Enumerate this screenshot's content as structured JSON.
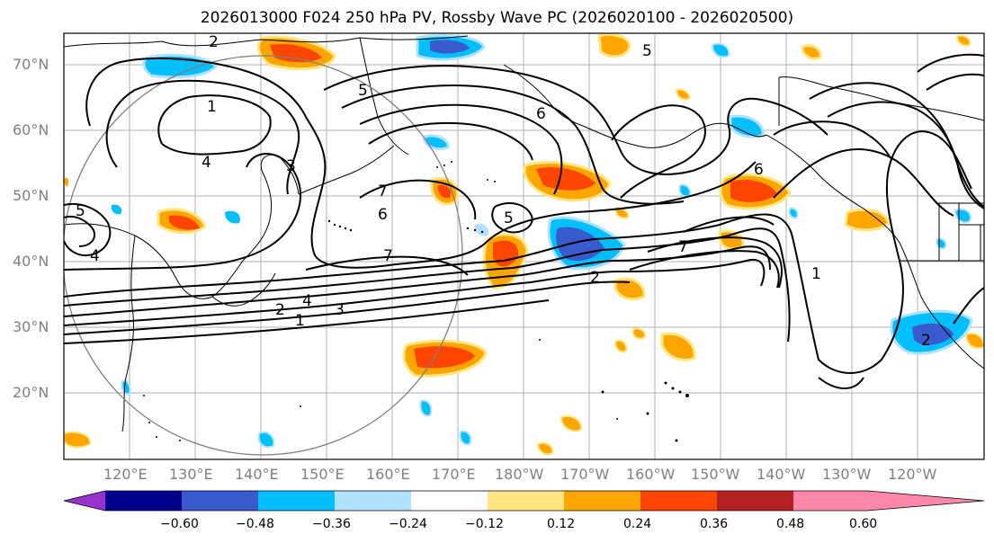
{
  "title": "2026013000 F024 250 hPa PV, Rossby Wave PC (2026020100 - 2026020500)",
  "lat_labels": [
    "70°N",
    "60°N",
    "50°N",
    "40°N",
    "30°N",
    "20°N"
  ],
  "lon_labels": [
    "120°E",
    "130°E",
    "140°E",
    "150°E",
    "160°E",
    "170°E",
    "180°W",
    "170°W",
    "160°W",
    "150°W",
    "140°W",
    "130°W",
    "120°W"
  ],
  "colorbar": {
    "ticks": [
      "−0.60",
      "−0.48",
      "−0.36",
      "−0.24",
      "−0.12",
      "0.12",
      "0.24",
      "0.36",
      "0.48",
      "0.60"
    ],
    "colors": [
      "#9932cc",
      "#00008b",
      "#3a5bcd",
      "#00bfff",
      "#b0e2ff",
      "#ffffff",
      "#ffe680",
      "#ffa500",
      "#ff4500",
      "#b22222",
      "#ff88aa"
    ]
  },
  "contour_labels": [
    "1",
    "2",
    "3",
    "4",
    "5",
    "6",
    "7"
  ],
  "map_labels": {
    "c1": "1",
    "c2": "2",
    "c3": "3",
    "c4": "4",
    "c5": "5",
    "c6": "6",
    "c7": "7",
    "c5b": "5",
    "c6b": "6",
    "c7b": "7",
    "c2b": "2",
    "c1b": "1",
    "c4b": "4",
    "c3b": "3",
    "c5c": "5",
    "c2c": "2",
    "c2d": "2",
    "c4c": "4",
    "c5d": "5",
    "c6c": "6",
    "c7c": "7",
    "c1c": "1"
  }
}
